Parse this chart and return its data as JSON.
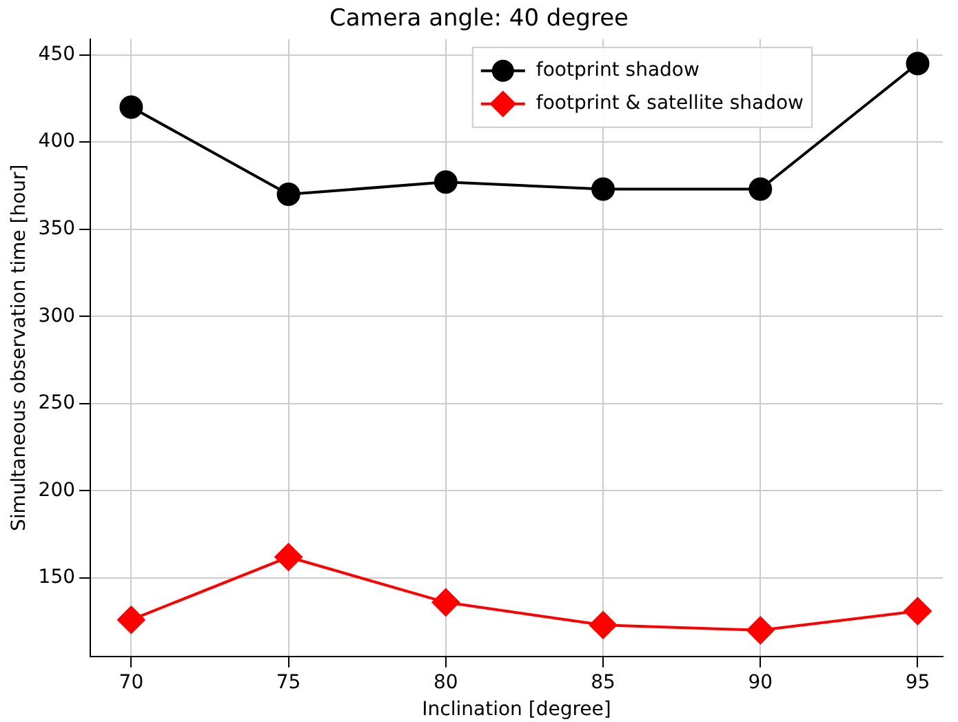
{
  "chart_data": {
    "type": "line",
    "title": "Camera angle: 40 degree",
    "xlabel": "Inclination [degree]",
    "ylabel": "Simultaneous observation time [hour]",
    "x": [
      70,
      75,
      80,
      85,
      90,
      95
    ],
    "series": [
      {
        "name": "footprint shadow",
        "color": "#000000",
        "marker": "circle",
        "values": [
          420,
          370,
          377,
          373,
          373,
          445
        ]
      },
      {
        "name": "footprint & satellite shadow",
        "color": "#ff0000",
        "marker": "diamond",
        "values": [
          126,
          162,
          136,
          123,
          120,
          131
        ]
      }
    ],
    "xlim": [
      68.7,
      95.8
    ],
    "xticks": [
      70,
      75,
      80,
      85,
      90,
      95
    ],
    "ylim": [
      105,
      459
    ],
    "yticks": [
      150,
      200,
      250,
      300,
      350,
      400,
      450
    ],
    "grid": true,
    "legend": "top right",
    "line_style": "solid"
  }
}
